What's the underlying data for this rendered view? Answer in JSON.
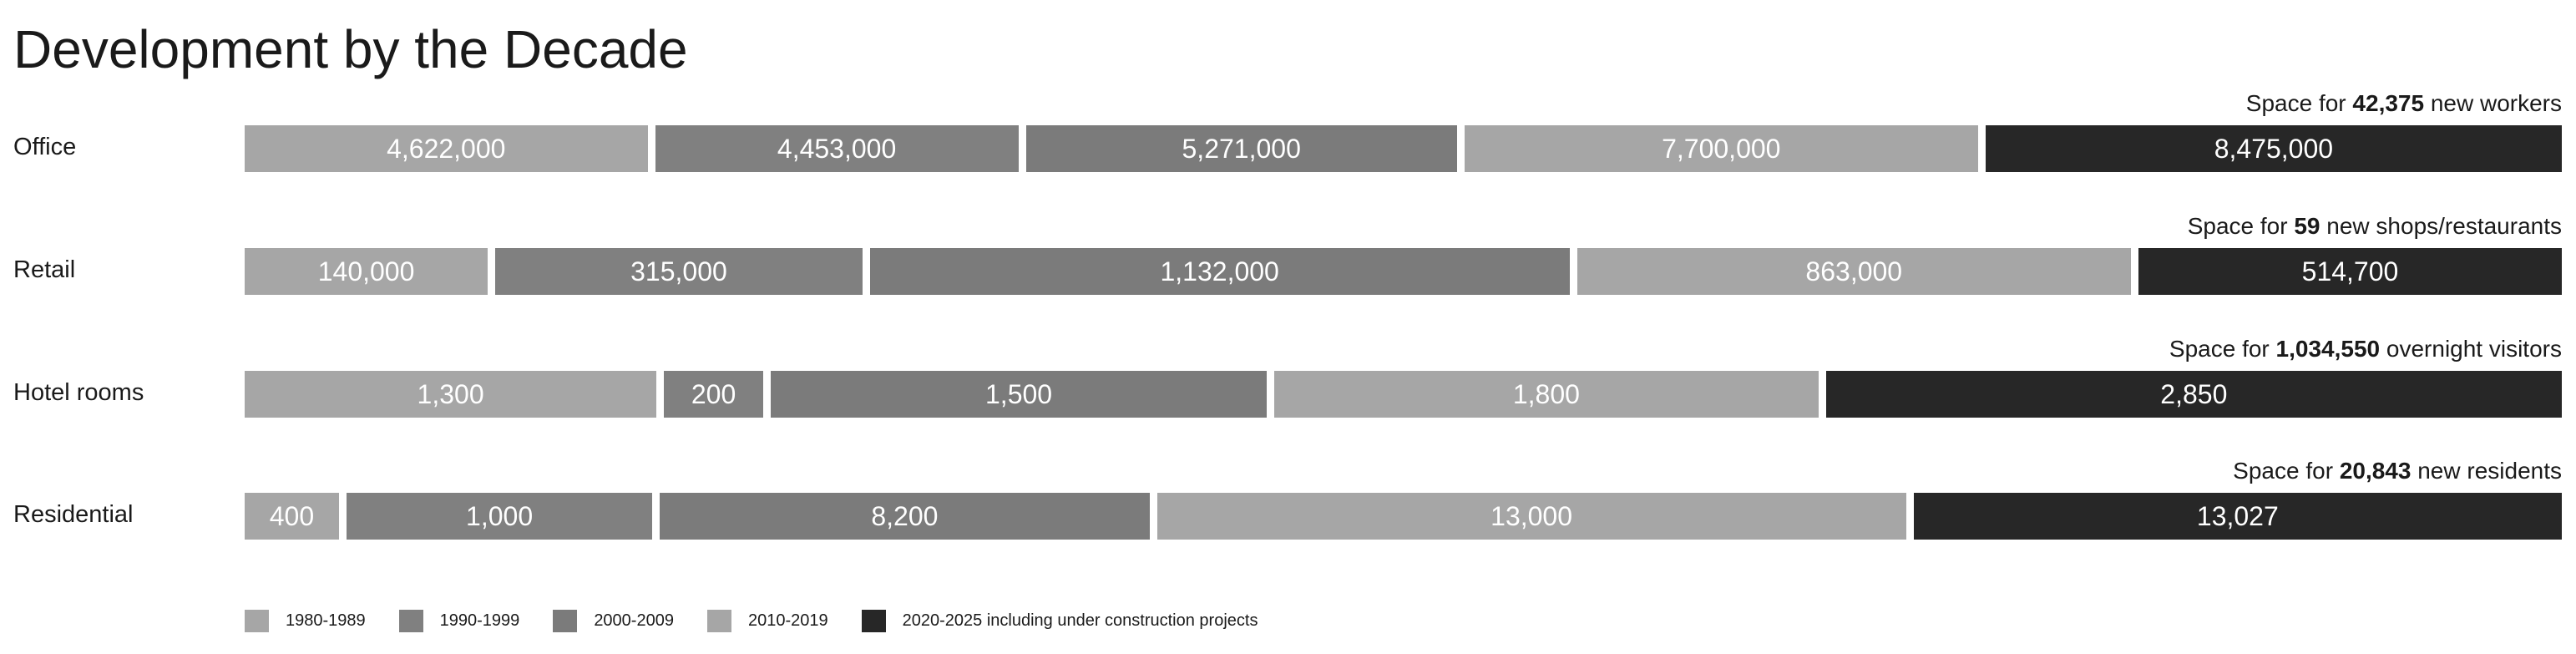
{
  "chart_data": {
    "type": "bar",
    "orientation": "horizontal-stacked",
    "title": "Development by the Decade",
    "legend_position": "bottom-left",
    "grid": false,
    "legend": [
      {
        "name": "1980-1989",
        "color": "#a6a6a6"
      },
      {
        "name": "1990-1999",
        "color": "#808080"
      },
      {
        "name": "2000-2009",
        "color": "#7b7b7b"
      },
      {
        "name": "2010-2019",
        "color": "#a6a6a6"
      },
      {
        "name": "2020-2025 including under construction projects",
        "color": "#272727"
      }
    ],
    "categories": [
      "Office",
      "Retail",
      "Hotel rooms",
      "Residential"
    ],
    "rows": [
      {
        "category": "Office",
        "values": [
          "4,622,000",
          "4,453,000",
          "5,271,000",
          "7,700,000",
          "8,475,000"
        ],
        "note": {
          "prefix": "Space for ",
          "bold": "42,375",
          "suffix": " new workers"
        }
      },
      {
        "category": "Retail",
        "values": [
          "140,000",
          "315,000",
          "1,132,000",
          "863,000",
          "514,700"
        ],
        "note": {
          "prefix": "Space for ",
          "bold": "59",
          "suffix": " new shops/restaurants"
        }
      },
      {
        "category": "Hotel rooms",
        "values": [
          "1,300",
          "200",
          "1,500",
          "1,800",
          "2,850"
        ],
        "note": {
          "prefix": "Space for ",
          "bold": "1,034,550",
          "suffix": " overnight visitors"
        }
      },
      {
        "category": "Residential",
        "values": [
          "400",
          "1,000",
          "8,200",
          "13,000",
          "13,027"
        ],
        "note": {
          "prefix": "Space for ",
          "bold": "20,843",
          "suffix": " new residents"
        }
      }
    ]
  }
}
